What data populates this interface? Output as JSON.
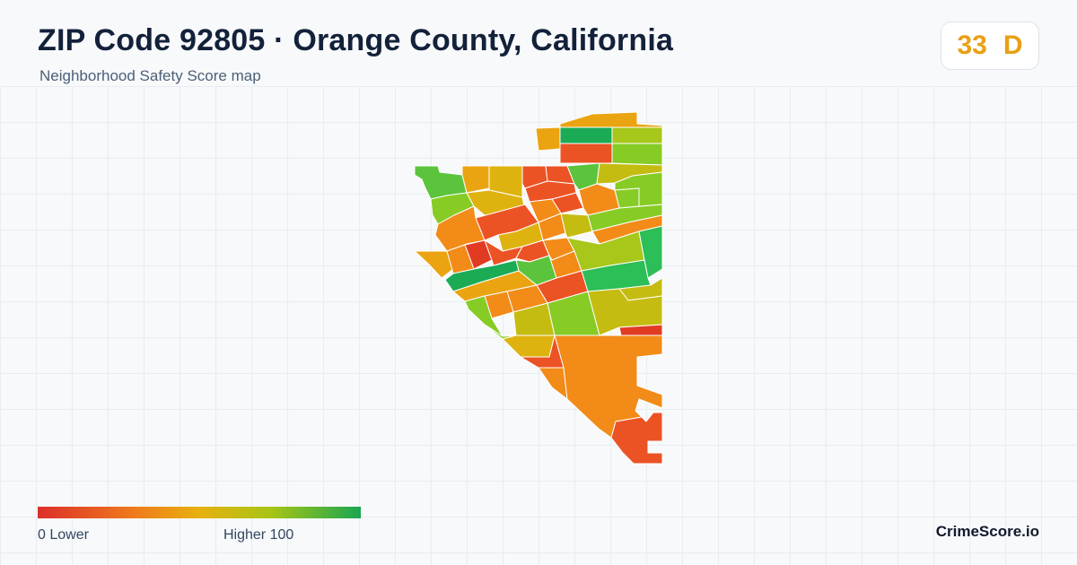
{
  "header": {
    "title": "ZIP Code 92805 · Orange County, California",
    "subtitle": "Neighborhood Safety Score map"
  },
  "score_badge": {
    "score": "33",
    "grade": "D",
    "color": "#e8a013"
  },
  "legend": {
    "min_label": "0  Lower",
    "max_label": "Higher  100",
    "gradient_colors": [
      "#dc2f2a",
      "#f07a1c",
      "#e7b10e",
      "#a8c515",
      "#1aa650"
    ]
  },
  "brand": {
    "name": "CrimeScore.io"
  },
  "map": {
    "region_colors": {
      "red": "#e23b24",
      "red_orange": "#ec5324",
      "orange": "#f28b17",
      "amber": "#eba411",
      "gold": "#dfb30f",
      "olive": "#c5bc12",
      "lime": "#a7c71a",
      "yellow_green": "#86cc25",
      "green": "#5cc43c",
      "emerald": "#2cbe57",
      "teal_green": "#1bab55"
    }
  }
}
